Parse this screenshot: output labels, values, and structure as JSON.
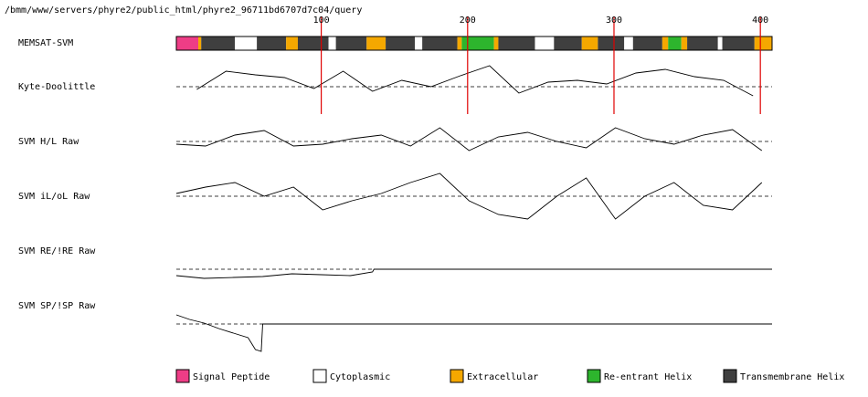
{
  "header": {
    "path": "/bmm/www/servers/phyre2/public_html/phyre2_96711bd6707d7c04/query"
  },
  "chart_data": {
    "type": "track",
    "xlim": [
      1,
      408
    ],
    "xticks": [
      100,
      200,
      300,
      400
    ],
    "threshold": 0,
    "tracks": [
      {
        "label": "MEMSAT-SVM",
        "segments": [
          {
            "start": 1,
            "end": 16,
            "kind": "Signal Peptide"
          },
          {
            "start": 16,
            "end": 18,
            "kind": "Extracellular"
          },
          {
            "start": 18,
            "end": 41,
            "kind": "Transmembrane Helix"
          },
          {
            "start": 41,
            "end": 56,
            "kind": "Cytoplasmic"
          },
          {
            "start": 56,
            "end": 76,
            "kind": "Transmembrane Helix"
          },
          {
            "start": 76,
            "end": 84,
            "kind": "Extracellular"
          },
          {
            "start": 84,
            "end": 105,
            "kind": "Transmembrane Helix"
          },
          {
            "start": 105,
            "end": 110,
            "kind": "Cytoplasmic"
          },
          {
            "start": 110,
            "end": 131,
            "kind": "Transmembrane Helix"
          },
          {
            "start": 131,
            "end": 144,
            "kind": "Extracellular"
          },
          {
            "start": 144,
            "end": 164,
            "kind": "Transmembrane Helix"
          },
          {
            "start": 164,
            "end": 169,
            "kind": "Cytoplasmic"
          },
          {
            "start": 169,
            "end": 193,
            "kind": "Transmembrane Helix"
          },
          {
            "start": 193,
            "end": 196,
            "kind": "Extracellular"
          },
          {
            "start": 196,
            "end": 218,
            "kind": "Re-entrant Helix"
          },
          {
            "start": 218,
            "end": 221,
            "kind": "Extracellular"
          },
          {
            "start": 221,
            "end": 246,
            "kind": "Transmembrane Helix"
          },
          {
            "start": 246,
            "end": 259,
            "kind": "Cytoplasmic"
          },
          {
            "start": 259,
            "end": 278,
            "kind": "Transmembrane Helix"
          },
          {
            "start": 278,
            "end": 289,
            "kind": "Extracellular"
          },
          {
            "start": 289,
            "end": 307,
            "kind": "Transmembrane Helix"
          },
          {
            "start": 307,
            "end": 313,
            "kind": "Cytoplasmic"
          },
          {
            "start": 313,
            "end": 333,
            "kind": "Transmembrane Helix"
          },
          {
            "start": 333,
            "end": 337,
            "kind": "Extracellular"
          },
          {
            "start": 337,
            "end": 346,
            "kind": "Re-entrant Helix"
          },
          {
            "start": 346,
            "end": 350,
            "kind": "Extracellular"
          },
          {
            "start": 350,
            "end": 371,
            "kind": "Transmembrane Helix"
          },
          {
            "start": 371,
            "end": 374,
            "kind": "Cytoplasmic"
          },
          {
            "start": 374,
            "end": 396,
            "kind": "Transmembrane Helix"
          },
          {
            "start": 396,
            "end": 408,
            "kind": "Extracellular"
          }
        ]
      },
      {
        "label": "Kyte-Doolittle",
        "x": [
          15,
          35,
          55,
          75,
          95,
          115,
          135,
          155,
          175,
          195,
          215,
          235,
          255,
          275,
          295,
          315,
          335,
          355,
          375,
          395
        ],
        "values": [
          -0.15,
          0.85,
          0.65,
          0.5,
          -0.1,
          0.85,
          -0.25,
          0.35,
          0,
          0.6,
          1.15,
          -0.35,
          0.25,
          0.35,
          0.15,
          0.75,
          0.95,
          0.55,
          0.35,
          -0.5
        ]
      },
      {
        "label": "SVM H/L Raw",
        "x": [
          1,
          21,
          41,
          61,
          81,
          101,
          121,
          141,
          161,
          181,
          201,
          221,
          241,
          261,
          281,
          301,
          321,
          341,
          361,
          381,
          401
        ],
        "values": [
          -0.15,
          -0.25,
          0.35,
          0.6,
          -0.25,
          -0.15,
          0.15,
          0.35,
          -0.25,
          0.75,
          -0.5,
          0.25,
          0.5,
          0,
          -0.35,
          0.75,
          0.15,
          -0.15,
          0.35,
          0.65,
          -0.5
        ]
      },
      {
        "label": "SVM iL/oL Raw",
        "x": [
          1,
          21,
          41,
          61,
          81,
          101,
          121,
          141,
          161,
          181,
          201,
          221,
          241,
          261,
          281,
          301,
          321,
          341,
          361,
          381,
          401
        ],
        "values": [
          0.15,
          0.5,
          0.75,
          0,
          0.5,
          -0.75,
          -0.25,
          0.15,
          0.75,
          1.25,
          -0.25,
          -1,
          -1.25,
          0,
          1,
          -1.25,
          0,
          0.75,
          -0.5,
          -0.75,
          0.75
        ]
      },
      {
        "label": "SVM RE/!RE Raw",
        "x": [
          1,
          20,
          40,
          60,
          80,
          100,
          120,
          135,
          136,
          408
        ],
        "values": [
          -0.35,
          -0.5,
          -0.45,
          -0.4,
          -0.25,
          -0.3,
          -0.35,
          -0.15,
          0,
          0
        ]
      },
      {
        "label": "SVM SP/!SP Raw",
        "x": [
          1,
          10,
          20,
          30,
          40,
          50,
          55,
          59,
          60,
          408
        ],
        "values": [
          0.5,
          0.25,
          0.05,
          -0.25,
          -0.5,
          -0.75,
          -1.4,
          -1.5,
          0,
          0
        ]
      }
    ],
    "legend": [
      {
        "name": "Signal Peptide",
        "color": "#ee3d86"
      },
      {
        "name": "Cytoplasmic",
        "color": "#ffffff"
      },
      {
        "name": "Extracellular",
        "color": "#f5a800"
      },
      {
        "name": "Re-entrant Helix",
        "color": "#2db52d"
      },
      {
        "name": "Transmembrane Helix",
        "color": "#3f3f3f"
      }
    ]
  }
}
